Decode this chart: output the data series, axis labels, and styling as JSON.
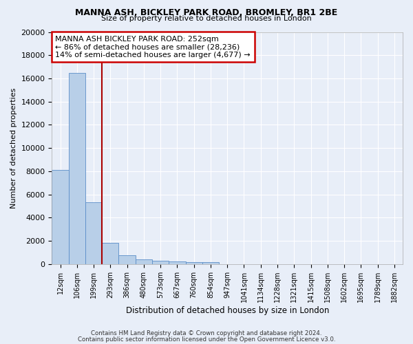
{
  "title1": "MANNA ASH, BICKLEY PARK ROAD, BROMLEY, BR1 2BE",
  "title2": "Size of property relative to detached houses in London",
  "xlabel": "Distribution of detached houses by size in London",
  "ylabel": "Number of detached properties",
  "categories": [
    "12sqm",
    "106sqm",
    "199sqm",
    "293sqm",
    "386sqm",
    "480sqm",
    "573sqm",
    "667sqm",
    "760sqm",
    "854sqm",
    "947sqm",
    "1041sqm",
    "1134sqm",
    "1228sqm",
    "1321sqm",
    "1415sqm",
    "1508sqm",
    "1602sqm",
    "1695sqm",
    "1789sqm",
    "1882sqm"
  ],
  "bar_heights": [
    8100,
    16500,
    5300,
    1850,
    750,
    380,
    280,
    230,
    190,
    170,
    0,
    0,
    0,
    0,
    0,
    0,
    0,
    0,
    0,
    0,
    0
  ],
  "bar_color": "#b8cfe8",
  "bar_edge_color": "#5b8dc8",
  "vline_color": "#aa0000",
  "annotation_text": "MANNA ASH BICKLEY PARK ROAD: 252sqm\n← 86% of detached houses are smaller (28,236)\n14% of semi-detached houses are larger (4,677) →",
  "annotation_box_color": "#ffffff",
  "annotation_box_edge": "#cc0000",
  "ylim": [
    0,
    20000
  ],
  "yticks": [
    0,
    2000,
    4000,
    6000,
    8000,
    10000,
    12000,
    14000,
    16000,
    18000,
    20000
  ],
  "footer1": "Contains HM Land Registry data © Crown copyright and database right 2024.",
  "footer2": "Contains public sector information licensed under the Open Government Licence v3.0.",
  "bg_color": "#e8eef8",
  "plot_bg_color": "#e8eef8",
  "grid_color": "#ffffff"
}
